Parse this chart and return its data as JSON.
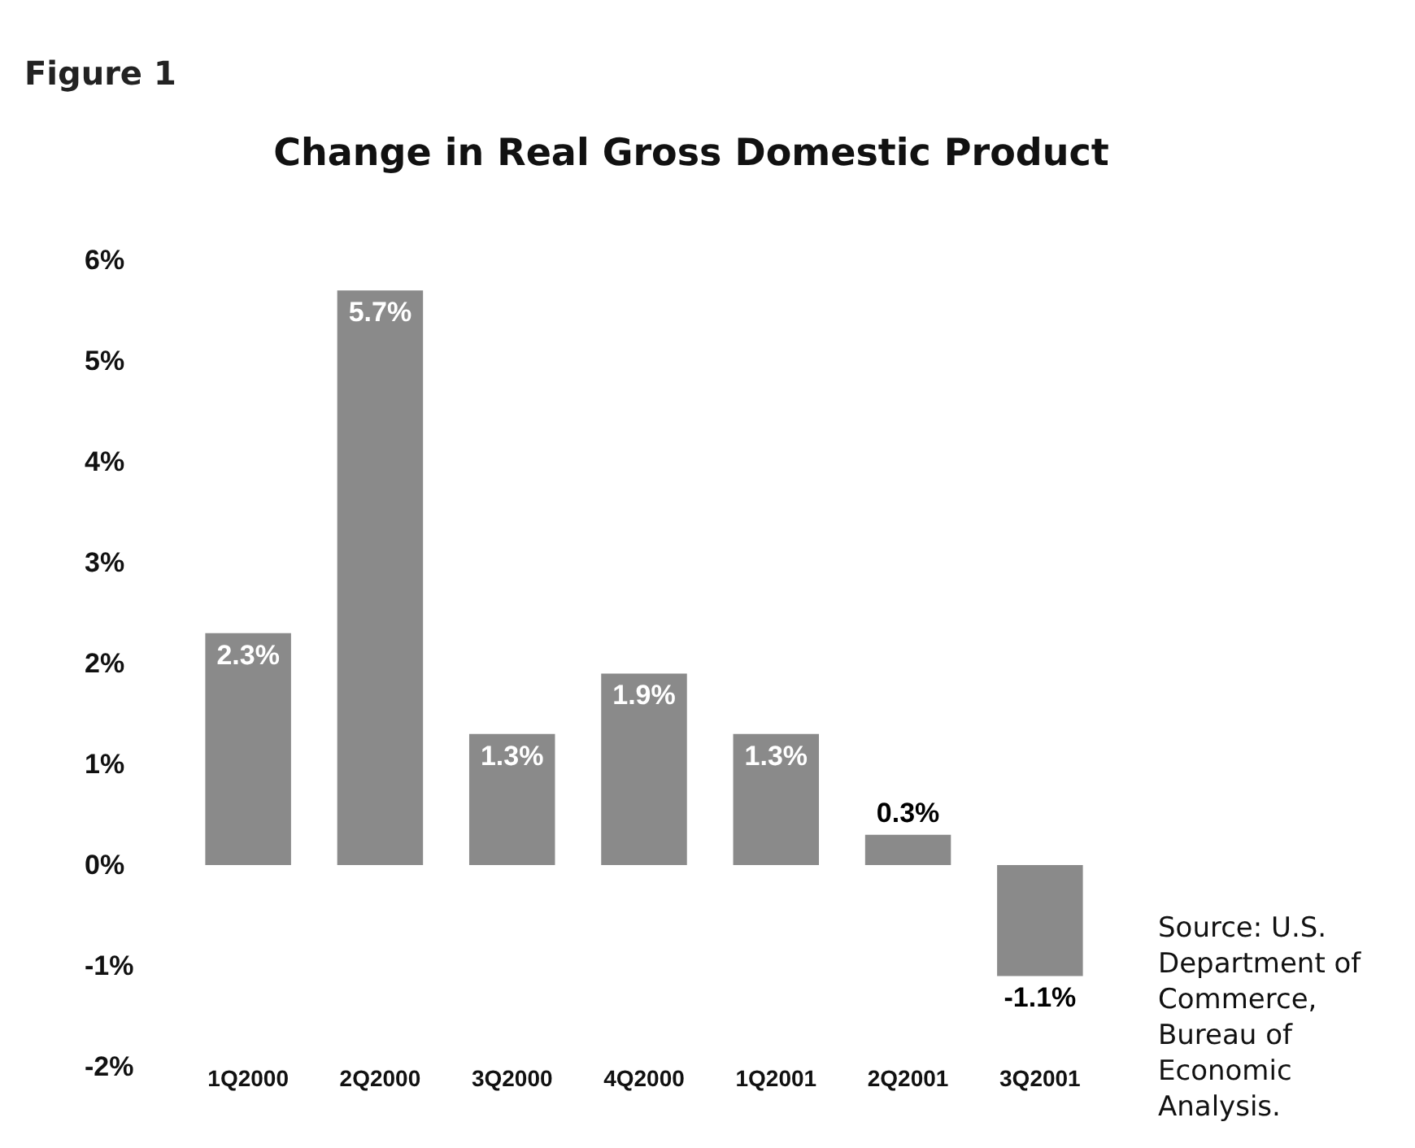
{
  "chart_data": {
    "type": "bar",
    "title": "Change in Real Gross Domestic Product",
    "categories": [
      "1Q2000",
      "2Q2000",
      "3Q2000",
      "4Q2000",
      "1Q2001",
      "2Q2001",
      "3Q2001"
    ],
    "values": [
      2.3,
      5.7,
      1.3,
      1.9,
      1.3,
      0.3,
      -1.1
    ],
    "value_labels": [
      "2.3%",
      "5.7%",
      "1.3%",
      "1.9%",
      "1.3%",
      "0.3%",
      "-1.1%"
    ],
    "color": "#8a8a8a",
    "ylim": [
      -2,
      6
    ],
    "yticks": [
      {
        "value": -2,
        "label": "-2%"
      },
      {
        "value": -1,
        "label": "-1%"
      },
      {
        "value": 0,
        "label": "0%"
      },
      {
        "value": 1,
        "label": "1%"
      },
      {
        "value": 2,
        "label": "2%"
      },
      {
        "value": 3,
        "label": "3%"
      },
      {
        "value": 4,
        "label": "4%"
      },
      {
        "value": 5,
        "label": "5%"
      },
      {
        "value": 6,
        "label": "6%"
      }
    ],
    "grid": false,
    "annotations": [
      "Figure 1",
      "Source: U.S.\nDepartment of\nCommerce,\nBureau of\nEconomic\nAnalysis."
    ]
  }
}
